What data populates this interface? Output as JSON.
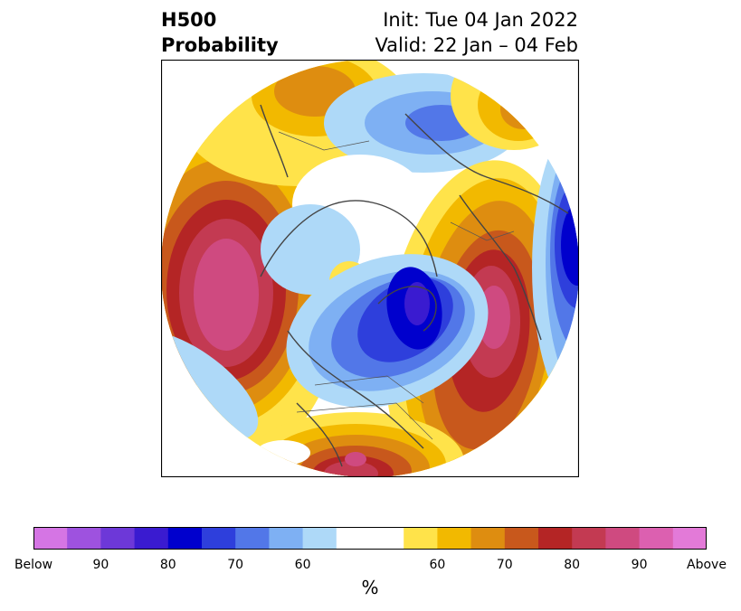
{
  "title": {
    "left_line1": "H500",
    "left_line2": "Probability",
    "right_line1": "Init: Tue 04 Jan 2022",
    "right_line2": "Valid: 22 Jan – 04 Feb"
  },
  "colorbar": {
    "unit": "%",
    "tick_labels": [
      "Below",
      "90",
      "80",
      "70",
      "60",
      "60",
      "70",
      "80",
      "90",
      "Above"
    ],
    "colors": [
      "#d575e4",
      "#9e52df",
      "#6d38d8",
      "#3a1bd0",
      "#0000cd",
      "#2e3fdc",
      "#5277e8",
      "#7eb0f3",
      "#aed9f8",
      "#ffffff",
      "#ffffff",
      "#ffe34a",
      "#f2b900",
      "#de8d10",
      "#c8581c",
      "#b42525",
      "#c33a52",
      "#cf4a80",
      "#dc60b0",
      "#e37ad8"
    ]
  },
  "map": {
    "projection": "north-polar-stereographic",
    "features": [
      "continents",
      "country-borders",
      "state-borders"
    ]
  }
}
